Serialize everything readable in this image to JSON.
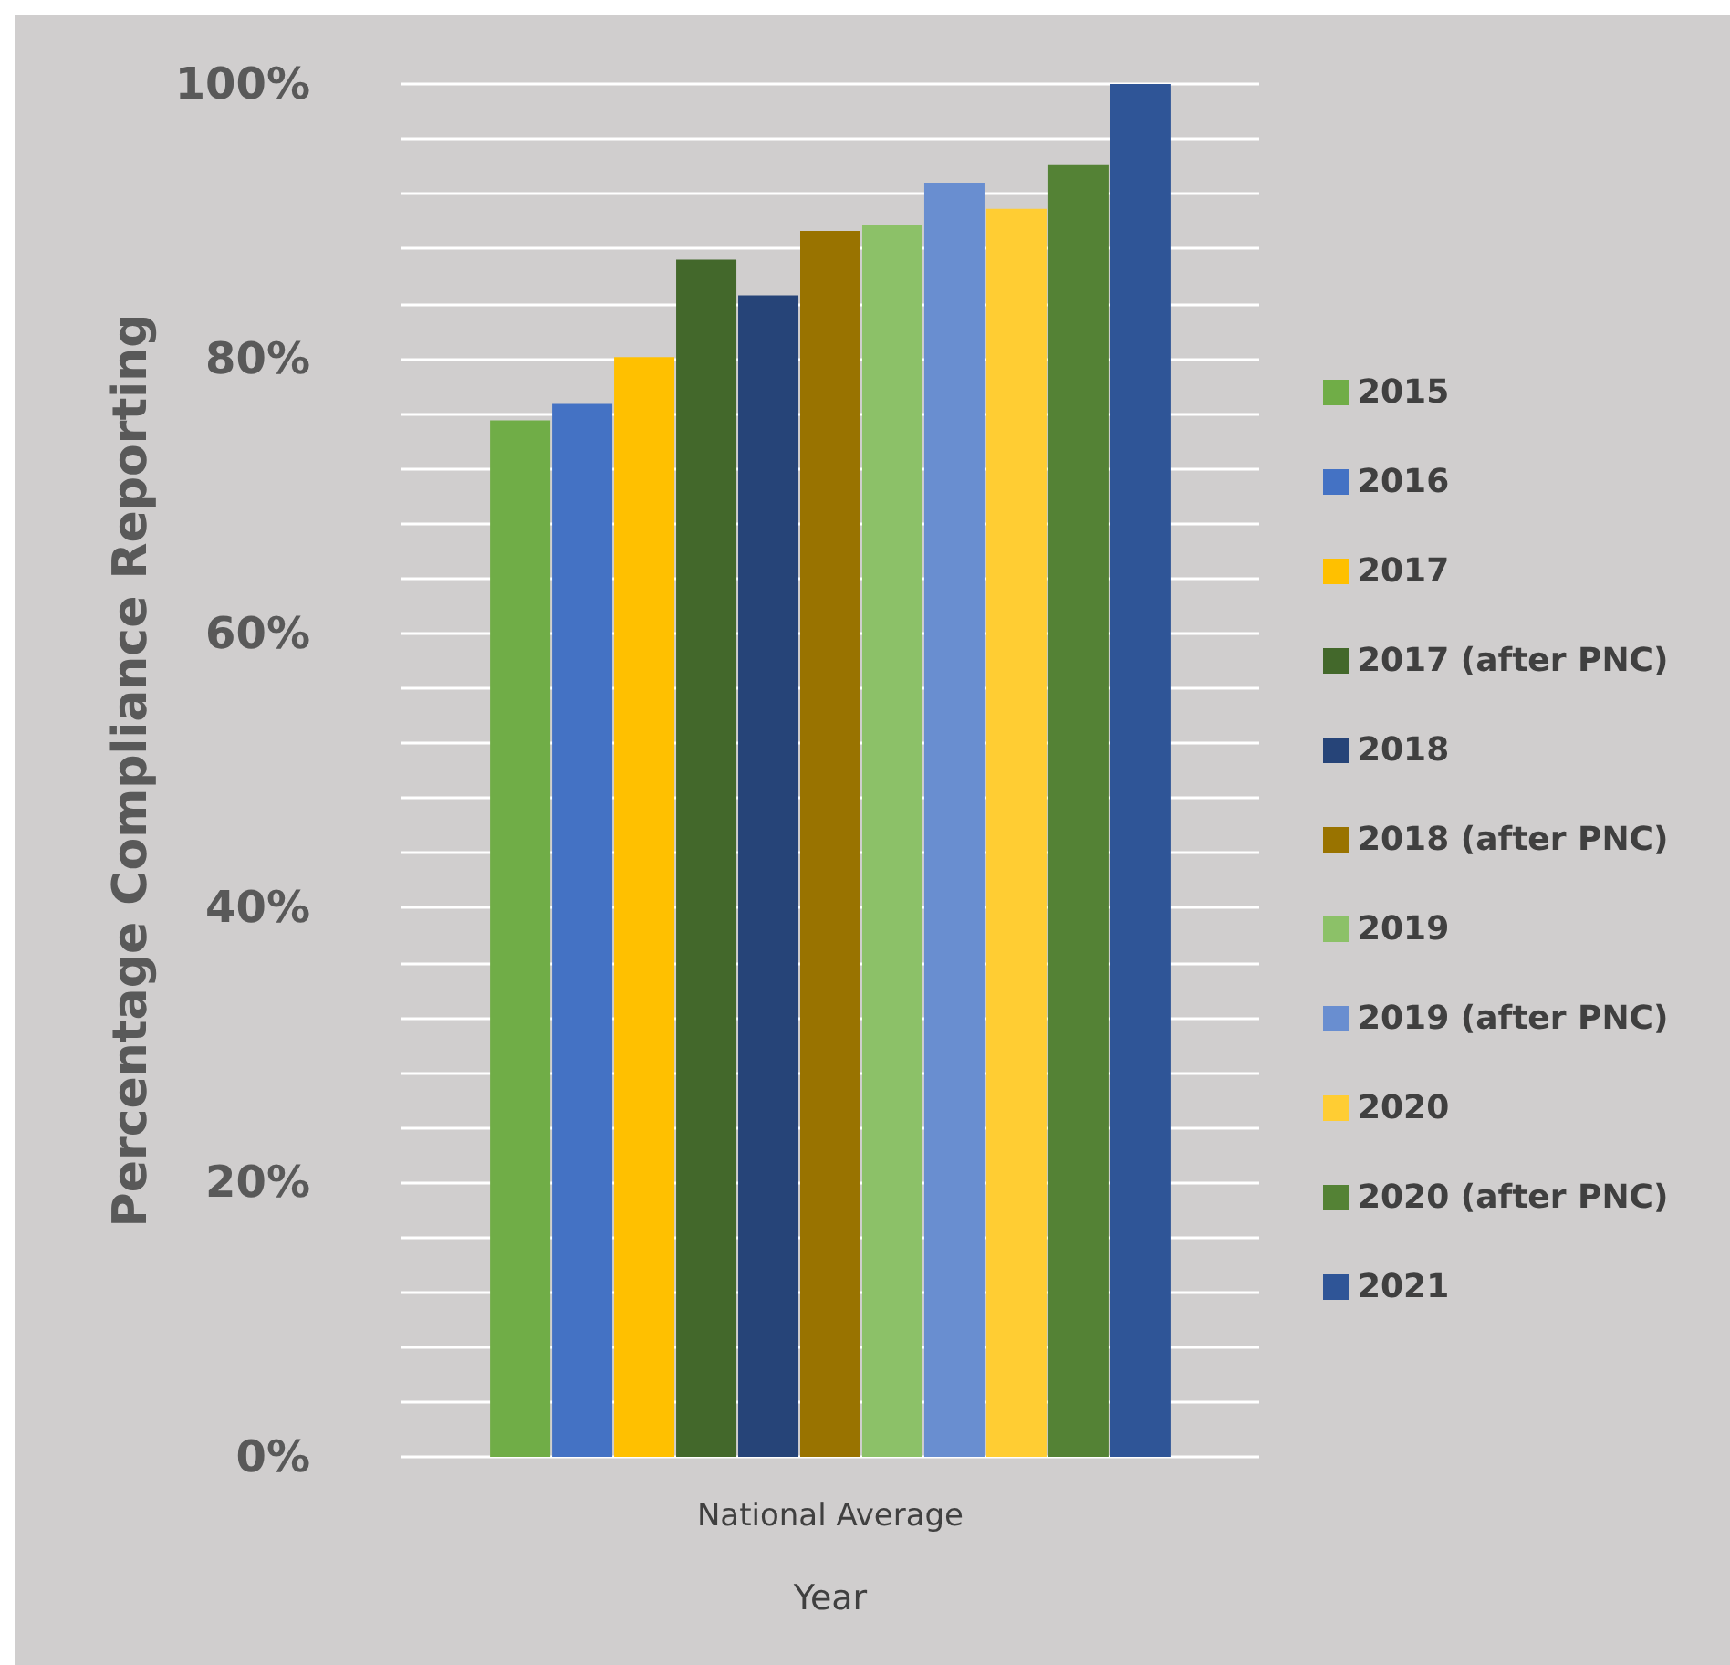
{
  "chart_data": {
    "type": "bar",
    "xlabel": "Year",
    "ylabel": "Percentage Compliance Reporting",
    "categories": [
      "National Average"
    ],
    "series": [
      {
        "name": "2015",
        "color": "#70ad47",
        "values": [
          75.5
        ]
      },
      {
        "name": "2016",
        "color": "#4472c4",
        "values": [
          76.7
        ]
      },
      {
        "name": "2017",
        "color": "#ffc000",
        "values": [
          80.1
        ]
      },
      {
        "name": "2017 (after PNC)",
        "color": "#43682b",
        "values": [
          87.2
        ]
      },
      {
        "name": "2018",
        "color": "#264478",
        "values": [
          84.6
        ]
      },
      {
        "name": "2018 (after PNC)",
        "color": "#997300",
        "values": [
          89.3
        ]
      },
      {
        "name": "2019",
        "color": "#8cc168",
        "values": [
          89.7
        ]
      },
      {
        "name": "2019 (after PNC)",
        "color": "#698ed0",
        "values": [
          92.8
        ]
      },
      {
        "name": "2020",
        "color": "#ffcd33",
        "values": [
          90.9
        ]
      },
      {
        "name": "2020 (after PNC)",
        "color": "#548235",
        "values": [
          94.1
        ]
      },
      {
        "name": "2021",
        "color": "#2f5597",
        "values": [
          100
        ]
      }
    ],
    "ylim": [
      0,
      100
    ],
    "yticks": [
      {
        "value": 0,
        "label": "0%"
      },
      {
        "value": 4,
        "label": null
      },
      {
        "value": 8,
        "label": null
      },
      {
        "value": 12,
        "label": null
      },
      {
        "value": 16,
        "label": null
      },
      {
        "value": 20,
        "label": "20%"
      },
      {
        "value": 24,
        "label": null
      },
      {
        "value": 28,
        "label": null
      },
      {
        "value": 32,
        "label": null
      },
      {
        "value": 36,
        "label": null
      },
      {
        "value": 40,
        "label": "40%"
      },
      {
        "value": 44,
        "label": null
      },
      {
        "value": 48,
        "label": null
      },
      {
        "value": 52,
        "label": null
      },
      {
        "value": 56,
        "label": null
      },
      {
        "value": 60,
        "label": "60%"
      },
      {
        "value": 64,
        "label": null
      },
      {
        "value": 68,
        "label": null
      },
      {
        "value": 72,
        "label": null
      },
      {
        "value": 76,
        "label": null
      },
      {
        "value": 80,
        "label": "80%"
      },
      {
        "value": 84,
        "label": null
      },
      {
        "value": 88,
        "label": null
      },
      {
        "value": 92,
        "label": null
      },
      {
        "value": 96,
        "label": null
      },
      {
        "value": 100,
        "label": "100%"
      }
    ],
    "grid": "y",
    "legend": "right"
  }
}
